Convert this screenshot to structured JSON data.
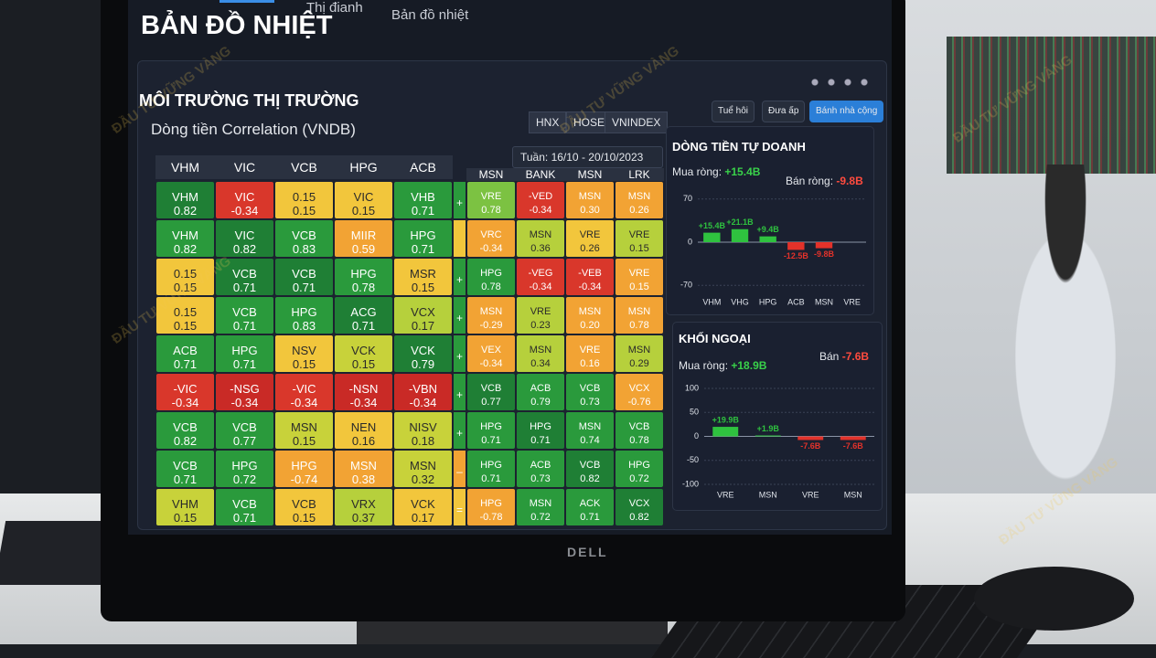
{
  "tabs": [
    "Thị đianh",
    "Bản đồ nhiệt"
  ],
  "title": "BẢN ĐỒ NHIỆT",
  "section_title": "MÔI TRƯỜNG THỊ TRƯỜNG",
  "subtitle": "Dòng tiền Correlation (VNDB)",
  "exchange_buttons": [
    "HNX",
    "HOSE",
    "VNINDEX"
  ],
  "toolbar": [
    "Tuể hôi",
    "Đưa ấp",
    "Bánh nhà cộng"
  ],
  "week": "Tuần: 16/10 - 20/10/2023",
  "heatmap": {
    "columns_left": [
      "VHM",
      "VIC",
      "VCB",
      "HPG",
      "ACB"
    ],
    "columns_right": [
      "MSN",
      "BANK",
      "MSN",
      "LRK"
    ],
    "rows": [
      {
        "left": [
          {
            "ticker": "VHM",
            "value": "0.82",
            "color": "#1f7f35"
          },
          {
            "ticker": "VIC",
            "value": "-0.34",
            "color": "#d9372b"
          },
          {
            "ticker": "0.15",
            "value": "0.15",
            "color": "#f2c63c"
          },
          {
            "ticker": "VIC",
            "value": "0.15",
            "color": "#f2c63c"
          },
          {
            "ticker": "VHB",
            "value": "0.71",
            "color": "#2a9a3c"
          }
        ],
        "sign": "+",
        "sign_color": "#2a9a3c",
        "right": [
          {
            "ticker": "VRE",
            "value": "0.78",
            "color": "#7cc242"
          },
          {
            "ticker": "-VED",
            "value": "-0.34",
            "color": "#d9372b"
          },
          {
            "ticker": "MSN",
            "value": "0.30",
            "color": "#f2a334"
          },
          {
            "ticker": "MSN",
            "value": "0.26",
            "color": "#f2a334"
          }
        ]
      },
      {
        "left": [
          {
            "ticker": "VHM",
            "value": "0.82",
            "color": "#2a9a3c"
          },
          {
            "ticker": "VIC",
            "value": "0.82",
            "color": "#1f7f35"
          },
          {
            "ticker": "VCB",
            "value": "0.83",
            "color": "#2a9a3c"
          },
          {
            "ticker": "MIIR",
            "value": "0.59",
            "color": "#f2a334"
          },
          {
            "ticker": "HPG",
            "value": "0.71",
            "color": "#2a9a3c"
          }
        ],
        "sign": "",
        "sign_color": "#f2c63c",
        "right": [
          {
            "ticker": "VRC",
            "value": "-0.34",
            "color": "#f2a334"
          },
          {
            "ticker": "MSN",
            "value": "0.36",
            "color": "#b6d03c"
          },
          {
            "ticker": "VRE",
            "value": "0.26",
            "color": "#f2c63c"
          },
          {
            "ticker": "VRE",
            "value": "0.15",
            "color": "#b6d03c"
          }
        ]
      },
      {
        "left": [
          {
            "ticker": "0.15",
            "value": "0.15",
            "color": "#f2c63c"
          },
          {
            "ticker": "VCB",
            "value": "0.71",
            "color": "#1f7f35"
          },
          {
            "ticker": "VCB",
            "value": "0.71",
            "color": "#1f7f35"
          },
          {
            "ticker": "HPG",
            "value": "0.78",
            "color": "#2a9a3c"
          },
          {
            "ticker": "MSR",
            "value": "0.15",
            "color": "#f2c63c"
          }
        ],
        "sign": "+",
        "sign_color": "#2a9a3c",
        "right": [
          {
            "ticker": "HPG",
            "value": "0.78",
            "color": "#2a9a3c"
          },
          {
            "ticker": "-VEG",
            "value": "-0.34",
            "color": "#d9372b"
          },
          {
            "ticker": "-VEB",
            "value": "-0.34",
            "color": "#d9372b"
          },
          {
            "ticker": "VRE",
            "value": "0.15",
            "color": "#f2a334"
          }
        ]
      },
      {
        "left": [
          {
            "ticker": "0.15",
            "value": "0.15",
            "color": "#f2c63c"
          },
          {
            "ticker": "VCB",
            "value": "0.71",
            "color": "#2a9a3c"
          },
          {
            "ticker": "HPG",
            "value": "0.83",
            "color": "#2a9a3c"
          },
          {
            "ticker": "ACG",
            "value": "0.71",
            "color": "#1f7f35"
          },
          {
            "ticker": "VCX",
            "value": "0.17",
            "color": "#b6d03c"
          }
        ],
        "sign": "+",
        "sign_color": "#2a9a3c",
        "right": [
          {
            "ticker": "MSN",
            "value": "-0.29",
            "color": "#f2a334"
          },
          {
            "ticker": "VRE",
            "value": "0.23",
            "color": "#b6d03c"
          },
          {
            "ticker": "MSN",
            "value": "0.20",
            "color": "#f2a334"
          },
          {
            "ticker": "MSN",
            "value": "0.78",
            "color": "#f2a334"
          }
        ]
      },
      {
        "left": [
          {
            "ticker": "ACB",
            "value": "0.71",
            "color": "#2a9a3c"
          },
          {
            "ticker": "HPG",
            "value": "0.71",
            "color": "#2a9a3c"
          },
          {
            "ticker": "NSV",
            "value": "0.15",
            "color": "#f2c63c"
          },
          {
            "ticker": "VCK",
            "value": "0.15",
            "color": "#c8d23a"
          },
          {
            "ticker": "VCK",
            "value": "0.79",
            "color": "#1f7f35"
          }
        ],
        "sign": "+",
        "sign_color": "#2a9a3c",
        "right": [
          {
            "ticker": "VEX",
            "value": "-0.34",
            "color": "#f2a334"
          },
          {
            "ticker": "MSN",
            "value": "0.34",
            "color": "#b6d03c"
          },
          {
            "ticker": "VRE",
            "value": "0.16",
            "color": "#f2a334"
          },
          {
            "ticker": "MSN",
            "value": "0.29",
            "color": "#b6d03c"
          }
        ]
      },
      {
        "left": [
          {
            "ticker": "-VIC",
            "value": "-0.34",
            "color": "#d9372b"
          },
          {
            "ticker": "-NSG",
            "value": "-0.34",
            "color": "#c92a26"
          },
          {
            "ticker": "-VIC",
            "value": "-0.34",
            "color": "#d9372b"
          },
          {
            "ticker": "-NSN",
            "value": "-0.34",
            "color": "#c92a26"
          },
          {
            "ticker": "-VBN",
            "value": "-0.34",
            "color": "#c92a26"
          }
        ],
        "sign": "+",
        "sign_color": "#2a9a3c",
        "right": [
          {
            "ticker": "VCB",
            "value": "0.77",
            "color": "#1f7f35"
          },
          {
            "ticker": "ACB",
            "value": "0.79",
            "color": "#2a9a3c"
          },
          {
            "ticker": "VCB",
            "value": "0.73",
            "color": "#2a9a3c"
          },
          {
            "ticker": "VCX",
            "value": "-0.76",
            "color": "#f2a334"
          }
        ]
      },
      {
        "left": [
          {
            "ticker": "VCB",
            "value": "0.82",
            "color": "#2a9a3c"
          },
          {
            "ticker": "VCB",
            "value": "0.77",
            "color": "#2a9a3c"
          },
          {
            "ticker": "MSN",
            "value": "0.15",
            "color": "#c8d23a"
          },
          {
            "ticker": "NEN",
            "value": "0.16",
            "color": "#f2c63c"
          },
          {
            "ticker": "NISV",
            "value": "0.18",
            "color": "#c8d23a"
          }
        ],
        "sign": "+",
        "sign_color": "#2a9a3c",
        "right": [
          {
            "ticker": "HPG",
            "value": "0.71",
            "color": "#2a9a3c"
          },
          {
            "ticker": "HPG",
            "value": "0.71",
            "color": "#1f7f35"
          },
          {
            "ticker": "MSN",
            "value": "0.74",
            "color": "#2a9a3c"
          },
          {
            "ticker": "VCB",
            "value": "0.78",
            "color": "#2a9a3c"
          }
        ]
      },
      {
        "left": [
          {
            "ticker": "VCB",
            "value": "0.71",
            "color": "#2a9a3c"
          },
          {
            "ticker": "HPG",
            "value": "0.72",
            "color": "#2a9a3c"
          },
          {
            "ticker": "HPG",
            "value": "-0.74",
            "color": "#f2a334"
          },
          {
            "ticker": "MSN",
            "value": "0.38",
            "color": "#f2a334"
          },
          {
            "ticker": "MSN",
            "value": "0.32",
            "color": "#c8d23a"
          }
        ],
        "sign": "–",
        "sign_color": "#f2a334",
        "right": [
          {
            "ticker": "HPG",
            "value": "0.71",
            "color": "#2a9a3c"
          },
          {
            "ticker": "ACB",
            "value": "0.73",
            "color": "#2a9a3c"
          },
          {
            "ticker": "VCB",
            "value": "0.82",
            "color": "#1f7f35"
          },
          {
            "ticker": "HPG",
            "value": "0.72",
            "color": "#2a9a3c"
          }
        ]
      },
      {
        "left": [
          {
            "ticker": "VHM",
            "value": "0.15",
            "color": "#c8d23a"
          },
          {
            "ticker": "VCB",
            "value": "0.71",
            "color": "#2a9a3c"
          },
          {
            "ticker": "VCB",
            "value": "0.15",
            "color": "#f2c63c"
          },
          {
            "ticker": "VRX",
            "value": "0.37",
            "color": "#b6d03c"
          },
          {
            "ticker": "VCK",
            "value": "0.17",
            "color": "#f2c63c"
          }
        ],
        "sign": "=",
        "sign_color": "#f2c63c",
        "right": [
          {
            "ticker": "HPG",
            "value": "-0.78",
            "color": "#f2a334"
          },
          {
            "ticker": "MSN",
            "value": "0.72",
            "color": "#2a9a3c"
          },
          {
            "ticker": "ACK",
            "value": "0.71",
            "color": "#2a9a3c"
          },
          {
            "ticker": "VCX",
            "value": "0.82",
            "color": "#1f7f35"
          }
        ]
      }
    ]
  },
  "proprietary": {
    "title": "DÒNG TIỀN TỰ DOANH",
    "buy_label": "Mua ròng:",
    "buy": "+15.4B",
    "sell_label": "Bán ròng:",
    "sell": "-9.8B",
    "chart": {
      "type": "bar",
      "categories": [
        "VHM",
        "VHG",
        "HPG",
        "ACB",
        "MSN",
        "VRE"
      ],
      "values": [
        15.4,
        21.1,
        9.4,
        -12.5,
        -9.8,
        null
      ],
      "value_labels": [
        "+15.4B",
        "+21.1B",
        "+9.4B",
        "-12.5B",
        "-9.8B",
        null
      ],
      "ylim": [
        -80,
        80
      ],
      "yticks": [
        70,
        0,
        -70
      ],
      "positive_color": "#2fc23f",
      "negative_color": "#e3322a"
    }
  },
  "foreign": {
    "title": "KHỐI NGOẠI",
    "buy_label": "Mua ròng:",
    "buy": "+18.9B",
    "sell_label": "Bán",
    "sell": "-7.6B",
    "chart": {
      "type": "bar",
      "categories": [
        "VRE",
        "MSN",
        "VRE",
        "MSN"
      ],
      "values": [
        19.9,
        1.9,
        -7.6,
        -7.6
      ],
      "value_labels": [
        "+19.9B",
        "+1.9B",
        "-7.6B",
        "-7.6B"
      ],
      "ylim": [
        -100,
        100
      ],
      "yticks": [
        100,
        50,
        0,
        -50,
        -100
      ],
      "positive_color": "#2fc23f",
      "negative_color": "#e3322a"
    }
  },
  "brand": "DELL",
  "watermark": "ĐẦU TƯ VỮNG VÀNG"
}
